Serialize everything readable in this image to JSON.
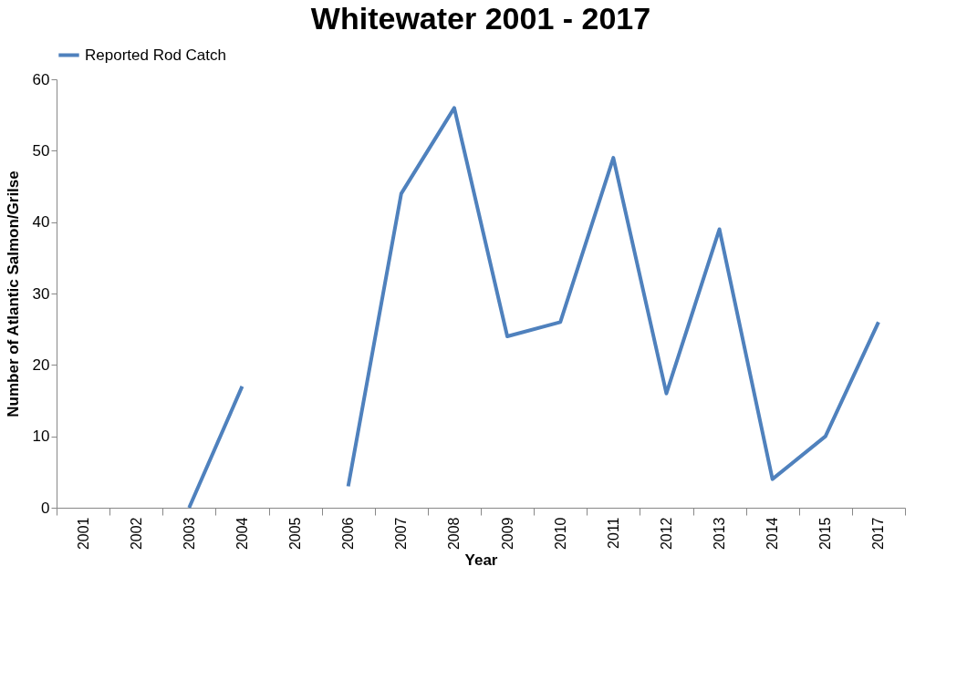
{
  "chart_data": {
    "type": "line",
    "title": "Whitewater 2001 - 2017",
    "xlabel": "Year",
    "ylabel": "Number of Atlantic Salmon/Grilse",
    "categories": [
      "2001",
      "2002",
      "2003",
      "2004",
      "2005",
      "2006",
      "2007",
      "2008",
      "2009",
      "2010",
      "2011",
      "2012",
      "2013",
      "2014",
      "2015",
      "2017"
    ],
    "series": [
      {
        "name": "Reported Rod Catch",
        "color": "#4f81bd",
        "values": [
          null,
          null,
          0,
          17,
          null,
          3,
          44,
          56,
          24,
          26,
          49,
          16,
          39,
          4,
          10,
          26
        ]
      }
    ],
    "ylim": [
      0,
      60
    ],
    "yticks": [
      0,
      10,
      20,
      30,
      40,
      50,
      60
    ],
    "grid": false,
    "legend": "top",
    "marker": "none",
    "line_style": "solid"
  }
}
